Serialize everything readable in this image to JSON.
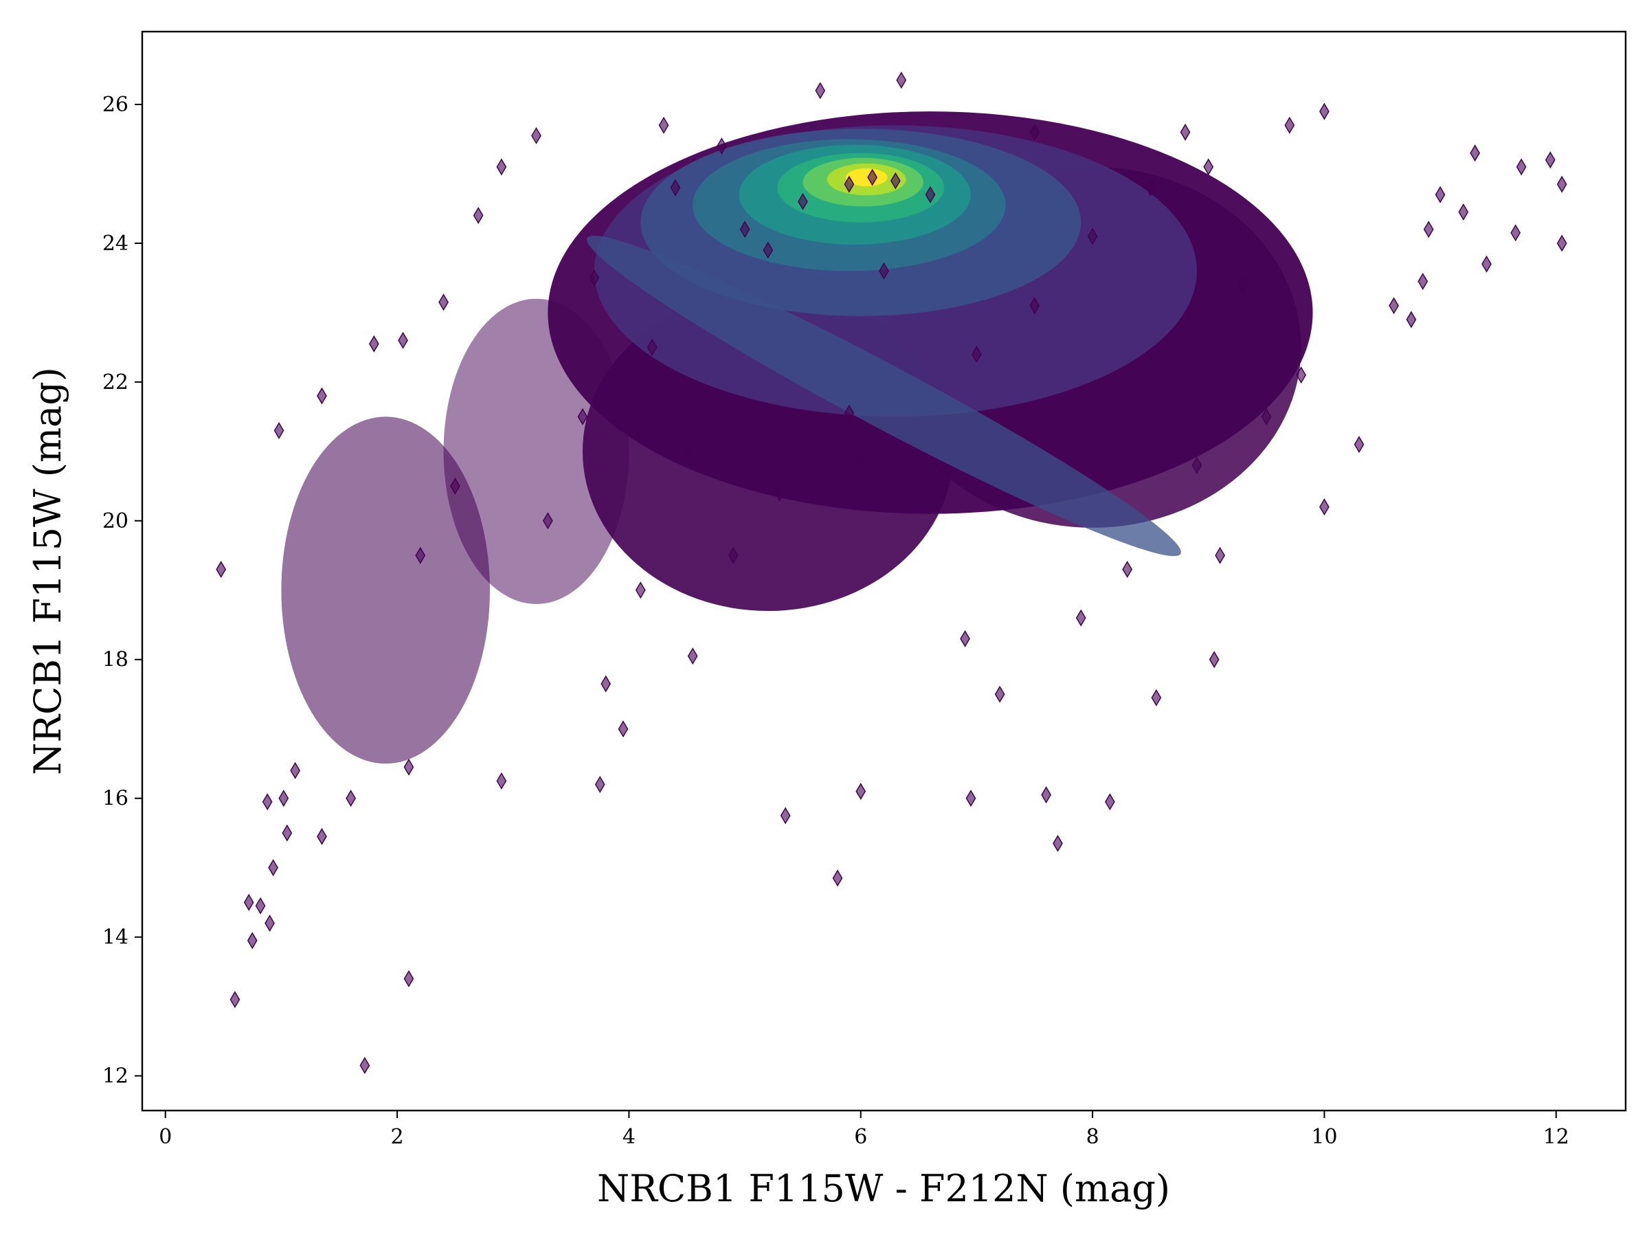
{
  "chart_data": {
    "type": "scatter",
    "title": "",
    "xlabel": "NRCB1 F115W - F212N (mag)",
    "ylabel": "NRCB1 F115W (mag)",
    "xlim": [
      -0.2,
      12.6
    ],
    "ylim": [
      27.05,
      11.5
    ],
    "y_inverted": true,
    "xticks": [
      0,
      2,
      4,
      6,
      8,
      10,
      12
    ],
    "xtick_labels": [
      "0",
      "2",
      "4",
      "6",
      "8",
      "10",
      "12"
    ],
    "yticks": [
      12,
      14,
      16,
      18,
      20,
      22,
      24,
      26
    ],
    "ytick_labels": [
      "12",
      "14",
      "16",
      "18",
      "20",
      "22",
      "24",
      "26"
    ],
    "grid": false,
    "legend": "none",
    "marker": "thin-diamond",
    "colormap": "viridis (point density)",
    "colors": {
      "low_density": "#440154",
      "mid_density": "#21918c",
      "high_density": "#fde725",
      "axes": "#000000"
    },
    "series": [
      {
        "values": [
          [
            0.6,
            13.1
          ],
          [
            0.75,
            13.95
          ],
          [
            0.9,
            14.2
          ],
          [
            0.72,
            14.5
          ],
          [
            0.82,
            14.45
          ],
          [
            0.93,
            15.0
          ],
          [
            1.05,
            15.5
          ],
          [
            1.72,
            12.15
          ],
          [
            2.1,
            13.4
          ],
          [
            1.35,
            15.45
          ],
          [
            0.88,
            15.95
          ],
          [
            1.02,
            16.0
          ],
          [
            1.12,
            16.4
          ],
          [
            1.6,
            16.0
          ],
          [
            2.1,
            16.45
          ],
          [
            0.48,
            19.3
          ],
          [
            0.98,
            21.3
          ],
          [
            1.35,
            21.8
          ],
          [
            1.8,
            22.55
          ],
          [
            2.05,
            22.6
          ],
          [
            2.4,
            23.15
          ],
          [
            2.7,
            24.4
          ],
          [
            2.9,
            16.25
          ],
          [
            3.75,
            16.2
          ],
          [
            3.95,
            17.0
          ],
          [
            3.8,
            17.65
          ],
          [
            4.1,
            19.0
          ],
          [
            4.55,
            18.05
          ],
          [
            5.35,
            15.75
          ],
          [
            5.8,
            14.85
          ],
          [
            6.0,
            16.1
          ],
          [
            7.6,
            16.05
          ],
          [
            7.7,
            15.35
          ],
          [
            8.15,
            15.95
          ],
          [
            6.95,
            16.0
          ],
          [
            8.55,
            17.45
          ],
          [
            9.05,
            18.0
          ],
          [
            9.1,
            19.5
          ],
          [
            10.0,
            20.2
          ],
          [
            10.3,
            21.1
          ],
          [
            10.6,
            23.1
          ],
          [
            10.75,
            22.9
          ],
          [
            10.85,
            23.45
          ],
          [
            10.9,
            24.2
          ],
          [
            11.0,
            24.7
          ],
          [
            11.4,
            23.7
          ],
          [
            11.2,
            24.45
          ],
          [
            11.65,
            24.15
          ],
          [
            12.05,
            24.0
          ],
          [
            12.05,
            24.85
          ],
          [
            11.95,
            25.2
          ],
          [
            11.7,
            25.1
          ],
          [
            11.3,
            25.3
          ],
          [
            10.0,
            25.9
          ],
          [
            9.7,
            25.7
          ],
          [
            5.65,
            26.2
          ],
          [
            6.35,
            26.35
          ],
          [
            3.2,
            25.55
          ],
          [
            2.9,
            25.1
          ],
          [
            2.2,
            19.5
          ],
          [
            2.5,
            20.5
          ],
          [
            3.3,
            20.0
          ],
          [
            3.6,
            21.5
          ],
          [
            4.5,
            21.0
          ],
          [
            5.9,
            21.55
          ],
          [
            6.9,
            18.3
          ],
          [
            7.2,
            17.5
          ],
          [
            7.9,
            18.6
          ],
          [
            8.3,
            19.3
          ],
          [
            8.9,
            20.8
          ],
          [
            9.5,
            21.5
          ],
          [
            9.8,
            22.1
          ],
          [
            9.3,
            23.4
          ],
          [
            5.0,
            24.2
          ],
          [
            5.5,
            24.6
          ],
          [
            5.9,
            24.85
          ],
          [
            6.1,
            24.95
          ],
          [
            6.3,
            24.9
          ],
          [
            6.6,
            24.7
          ],
          [
            5.2,
            23.9
          ],
          [
            6.2,
            23.6
          ],
          [
            7.0,
            22.4
          ],
          [
            7.5,
            23.1
          ],
          [
            8.0,
            24.1
          ],
          [
            8.5,
            24.8
          ],
          [
            9.0,
            25.1
          ],
          [
            4.4,
            24.8
          ],
          [
            4.8,
            25.4
          ],
          [
            7.5,
            25.6
          ],
          [
            8.8,
            25.6
          ],
          [
            5.3,
            20.4
          ],
          [
            6.0,
            20.9
          ],
          [
            4.9,
            19.5
          ],
          [
            4.2,
            22.5
          ],
          [
            3.7,
            23.5
          ],
          [
            4.3,
            25.7
          ]
        ]
      }
    ]
  }
}
